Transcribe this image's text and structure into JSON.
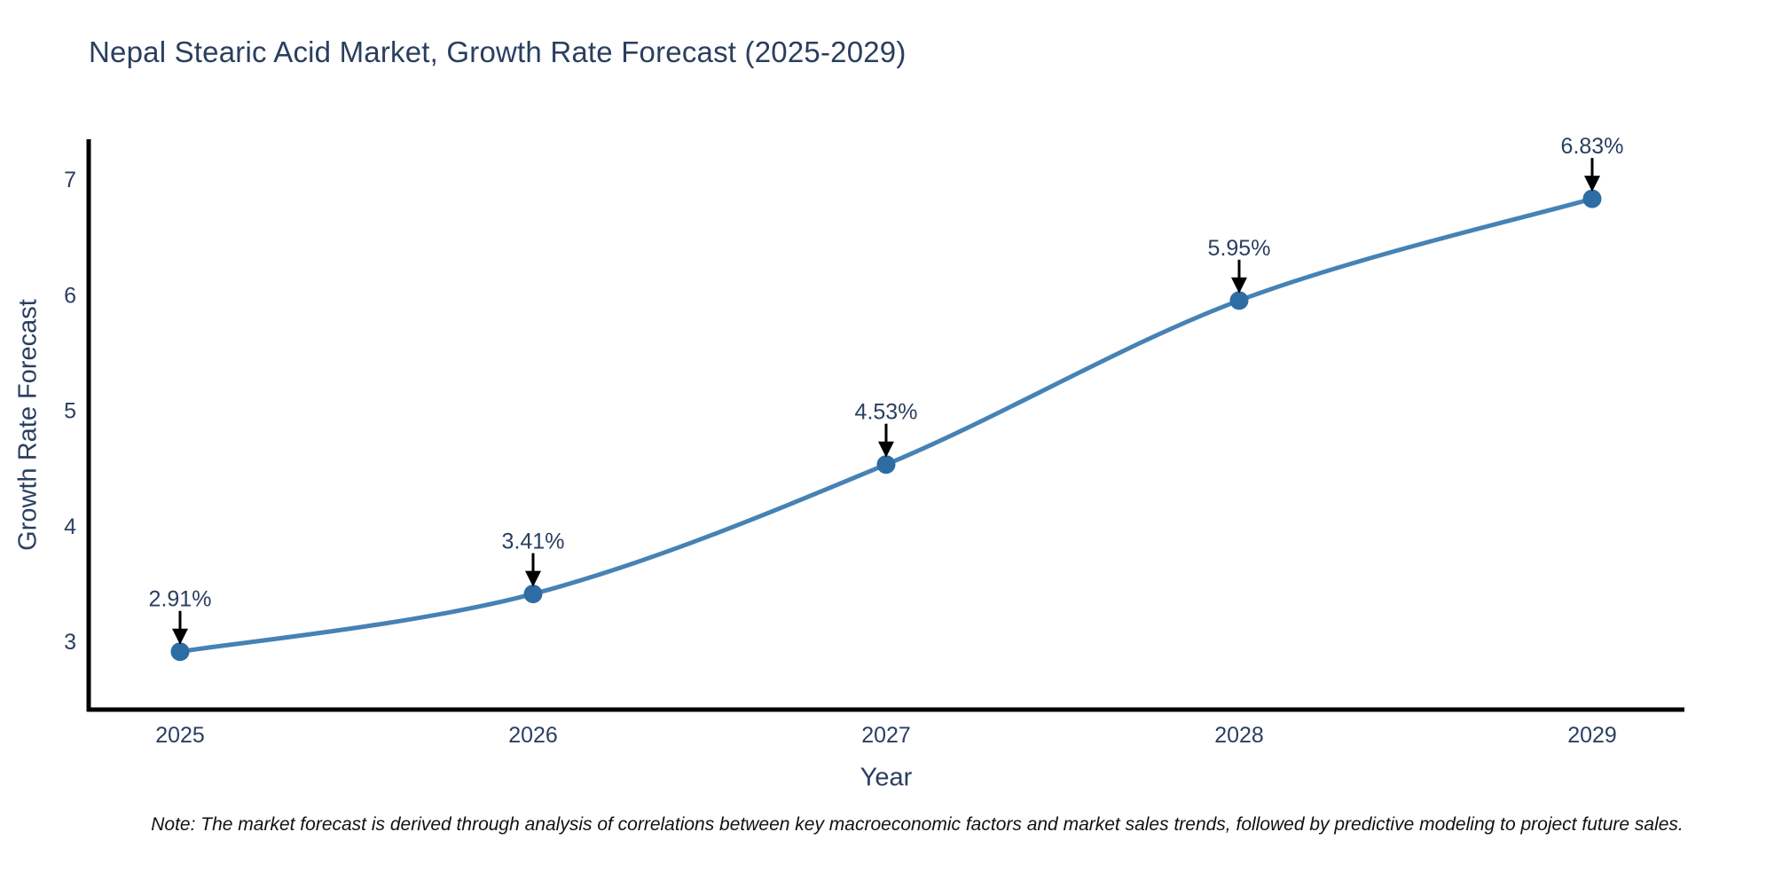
{
  "chart_data": {
    "type": "line",
    "line_shape": "spline",
    "title": "Nepal Stearic Acid Market, Growth Rate Forecast (2025-2029)",
    "xlabel": "Year",
    "ylabel": "Growth Rate Forecast",
    "x": [
      2025,
      2026,
      2027,
      2028,
      2029
    ],
    "values": [
      2.91,
      3.41,
      4.53,
      5.95,
      6.83
    ],
    "point_labels": [
      "2.91%",
      "3.41%",
      "4.53%",
      "5.95%",
      "6.83%"
    ],
    "x_tick_labels": [
      "2025",
      "2026",
      "2027",
      "2028",
      "2029"
    ],
    "y_ticks": [
      3,
      4,
      5,
      6,
      7
    ],
    "ylim": [
      2.42,
      7.35
    ],
    "grid": false,
    "legend": "none",
    "note": "Note: The market forecast is derived through analysis of correlations between key macroeconomic factors and market sales trends, followed by predictive modeling to project future sales.",
    "colors": {
      "line": "#4682b4",
      "marker": "#2e6ca4",
      "axis": "#000000",
      "arrow": "#000000",
      "text": "#2a3f5f",
      "background": "#ffffff"
    }
  }
}
